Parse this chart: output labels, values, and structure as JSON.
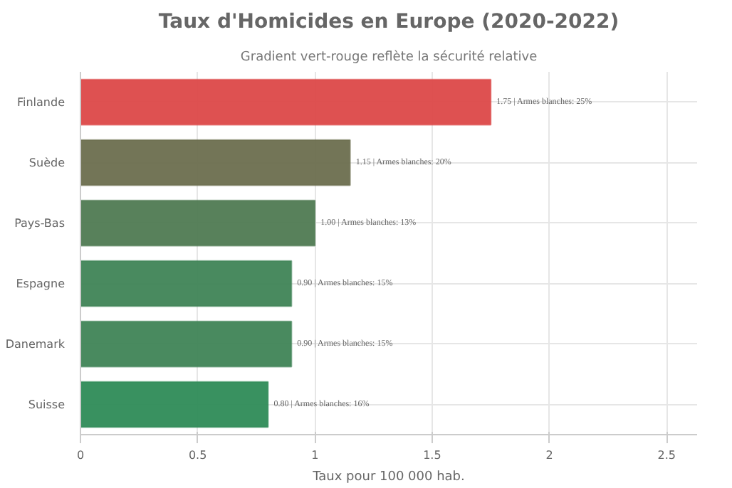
{
  "chart_data": {
    "type": "bar",
    "orientation": "horizontal",
    "title": "Taux d'Homicides en Europe (2020-2022)",
    "subtitle": "Gradient vert-rouge reflète la sécurité relative",
    "xlabel": "Taux pour 100 000 hab.",
    "categories": [
      "Finlande",
      "Suède",
      "Pays-Bas",
      "Espagne",
      "Danemark",
      "Suisse"
    ],
    "values": [
      1.75,
      1.15,
      1.0,
      0.9,
      0.9,
      0.8
    ],
    "value_labels": [
      "1.75 | Armes blanches: 25%",
      "1.15 | Armes blanches: 20%",
      "1.00 | Armes blanches: 13%",
      "0.90 | Armes blanches: 15%",
      "0.90 | Armes blanches: 15%",
      "0.80 | Armes blanches: 16%"
    ],
    "colors": [
      "#dc4848",
      "#6b6e4e",
      "#4f7a52",
      "#3f8456",
      "#3f8456",
      "#2e8b57"
    ],
    "xlim": [
      0,
      2.63
    ],
    "xticks": [
      0,
      {
        "value": 0.5,
        "label": "0.5"
      },
      1,
      {
        "value": 1.5,
        "label": "1.5"
      },
      2,
      {
        "value": 2.5,
        "label": "2.5"
      }
    ],
    "grid": true
  }
}
